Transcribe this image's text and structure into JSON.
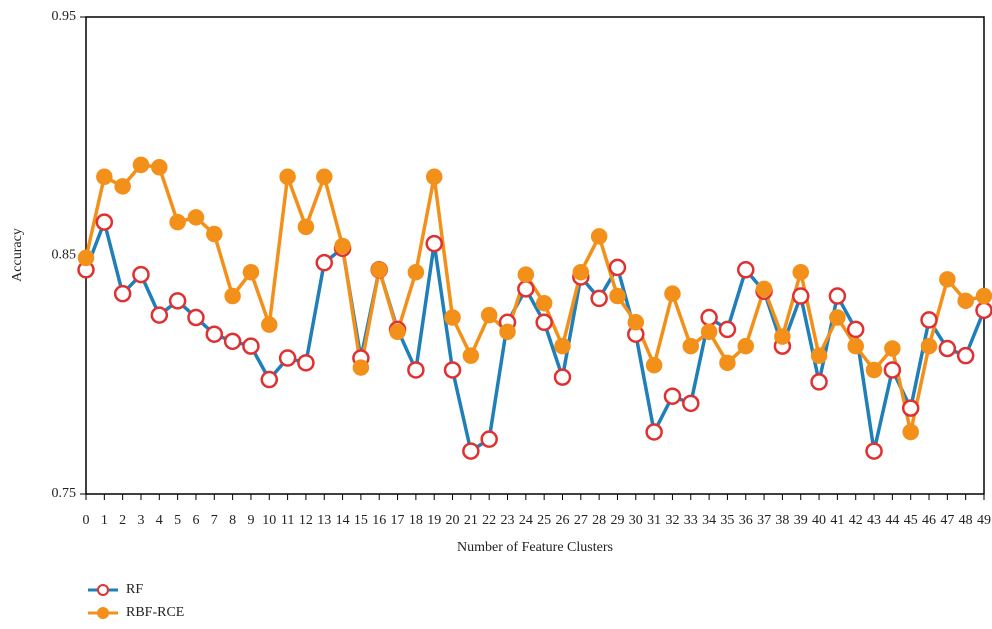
{
  "chart_data": {
    "type": "line",
    "xlabel": "Number of Feature Clusters",
    "ylabel": "Accuracy",
    "x": [
      0,
      1,
      2,
      3,
      4,
      5,
      6,
      7,
      8,
      9,
      10,
      11,
      12,
      13,
      14,
      15,
      16,
      17,
      18,
      19,
      20,
      21,
      22,
      23,
      24,
      25,
      26,
      27,
      28,
      29,
      30,
      31,
      32,
      33,
      34,
      35,
      36,
      37,
      38,
      39,
      40,
      41,
      42,
      43,
      44,
      45,
      46,
      47,
      48,
      49
    ],
    "xlim": [
      0,
      49
    ],
    "xticks": [
      0,
      1,
      2,
      3,
      4,
      5,
      6,
      7,
      8,
      9,
      10,
      11,
      12,
      13,
      14,
      15,
      16,
      17,
      18,
      19,
      20,
      21,
      22,
      23,
      24,
      25,
      26,
      27,
      28,
      29,
      30,
      31,
      32,
      33,
      34,
      35,
      36,
      37,
      38,
      39,
      40,
      41,
      42,
      43,
      44,
      45,
      46,
      47,
      48,
      49
    ],
    "ylim": [
      0.75,
      0.95
    ],
    "yticks": [
      0.75,
      0.85,
      0.95
    ],
    "grid": false,
    "legend": "bottom-left",
    "series": [
      {
        "name": "RF",
        "color": "#1f7fb8",
        "marker_color": "#e03030",
        "values": [
          0.844,
          0.864,
          0.834,
          0.842,
          0.825,
          0.831,
          0.824,
          0.817,
          0.814,
          0.812,
          0.798,
          0.807,
          0.805,
          0.847,
          0.853,
          0.807,
          0.844,
          0.819,
          0.802,
          0.855,
          0.802,
          0.768,
          0.773,
          0.822,
          0.836,
          0.822,
          0.799,
          0.841,
          0.832,
          0.845,
          0.817,
          0.776,
          0.791,
          0.788,
          0.824,
          0.819,
          0.844,
          0.835,
          0.812,
          0.833,
          0.797,
          0.833,
          0.819,
          0.768,
          0.802,
          0.786,
          0.823,
          0.811,
          0.808,
          0.827
        ]
      },
      {
        "name": "RBF-RCE",
        "color": "#f39019",
        "marker_color": "#f39019",
        "values": [
          0.849,
          0.883,
          0.879,
          0.888,
          0.887,
          0.864,
          0.866,
          0.859,
          0.833,
          0.843,
          0.821,
          0.883,
          0.862,
          0.883,
          0.854,
          0.803,
          0.844,
          0.818,
          0.843,
          0.883,
          0.824,
          0.808,
          0.825,
          0.818,
          0.842,
          0.83,
          0.812,
          0.843,
          0.858,
          0.833,
          0.822,
          0.804,
          0.834,
          0.812,
          0.818,
          0.805,
          0.812,
          0.836,
          0.816,
          0.843,
          0.808,
          0.824,
          0.812,
          0.802,
          0.811,
          0.776,
          0.812,
          0.84,
          0.831,
          0.833
        ]
      }
    ]
  }
}
